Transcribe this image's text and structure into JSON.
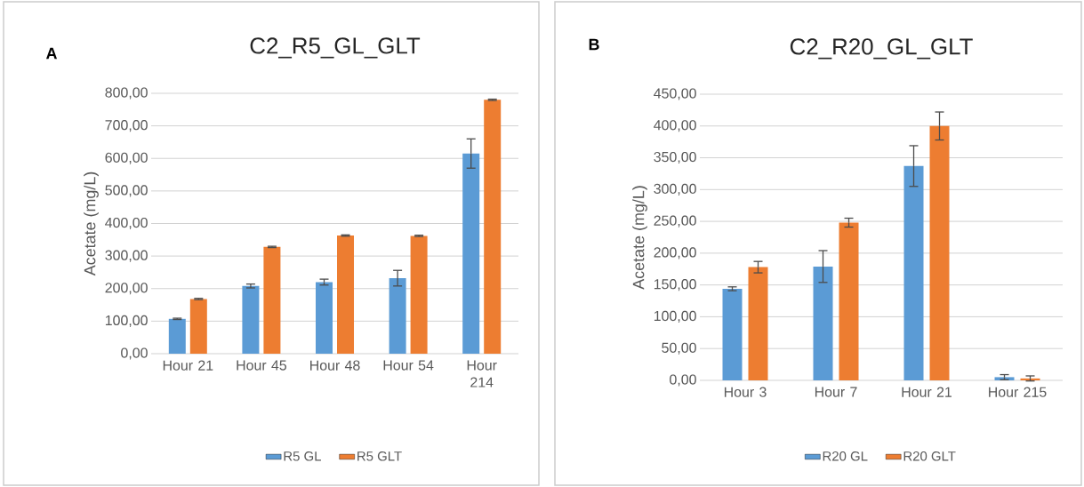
{
  "chart_data": [
    {
      "type": "bar",
      "title": "C2_R5_GL_GLT",
      "ylabel": "Acetate (mg/L)",
      "annotations": [
        "A"
      ],
      "categories": [
        "Hour 21",
        "Hour 45",
        "Hour 48",
        "Hour 54",
        "Hour 214"
      ],
      "series": [
        {
          "name": "R5 GL",
          "color": "#5b9bd5",
          "values": [
            107,
            208,
            220,
            232,
            615
          ],
          "errors": [
            2,
            6,
            9,
            24,
            45
          ]
        },
        {
          "name": "R5 GLT",
          "color": "#ed7d31",
          "values": [
            168,
            328,
            363,
            362,
            780
          ],
          "errors": [
            2,
            2,
            2,
            2,
            2
          ]
        }
      ],
      "ylim": [
        0,
        800
      ],
      "yticks": [
        {
          "value": 0,
          "label": "0,00"
        },
        {
          "value": 100,
          "label": "100,00"
        },
        {
          "value": 200,
          "label": "200,00"
        },
        {
          "value": 300,
          "label": "300,00"
        },
        {
          "value": 400,
          "label": "400,00"
        },
        {
          "value": 500,
          "label": "500,00"
        },
        {
          "value": 600,
          "label": "600,00"
        },
        {
          "value": 700,
          "label": "700,00"
        },
        {
          "value": 800,
          "label": "800,00"
        }
      ],
      "grid": "y",
      "legend": "bottom"
    },
    {
      "type": "bar",
      "title": "C2_R20_GL_GLT",
      "ylabel": "Acetate (mg/L)",
      "annotations": [
        "B"
      ],
      "categories": [
        "Hour 3",
        "Hour 7",
        "Hour 21",
        "Hour 215"
      ],
      "series": [
        {
          "name": "R20 GL",
          "color": "#5b9bd5",
          "values": [
            144,
            179,
            337,
            5
          ],
          "errors": [
            3,
            25,
            32,
            4
          ]
        },
        {
          "name": "R20 GLT",
          "color": "#ed7d31",
          "values": [
            178,
            248,
            400,
            3
          ],
          "errors": [
            9,
            7,
            22,
            4
          ]
        }
      ],
      "ylim": [
        0,
        450
      ],
      "yticks": [
        {
          "value": 0,
          "label": "0,00"
        },
        {
          "value": 50,
          "label": "50,00"
        },
        {
          "value": 100,
          "label": "100,00"
        },
        {
          "value": 150,
          "label": "150,00"
        },
        {
          "value": 200,
          "label": "200,00"
        },
        {
          "value": 250,
          "label": "250,00"
        },
        {
          "value": 300,
          "label": "300,00"
        },
        {
          "value": 350,
          "label": "350,00"
        },
        {
          "value": 400,
          "label": "400,00"
        },
        {
          "value": 450,
          "label": "450,00"
        }
      ],
      "grid": "y",
      "legend": "bottom"
    }
  ]
}
